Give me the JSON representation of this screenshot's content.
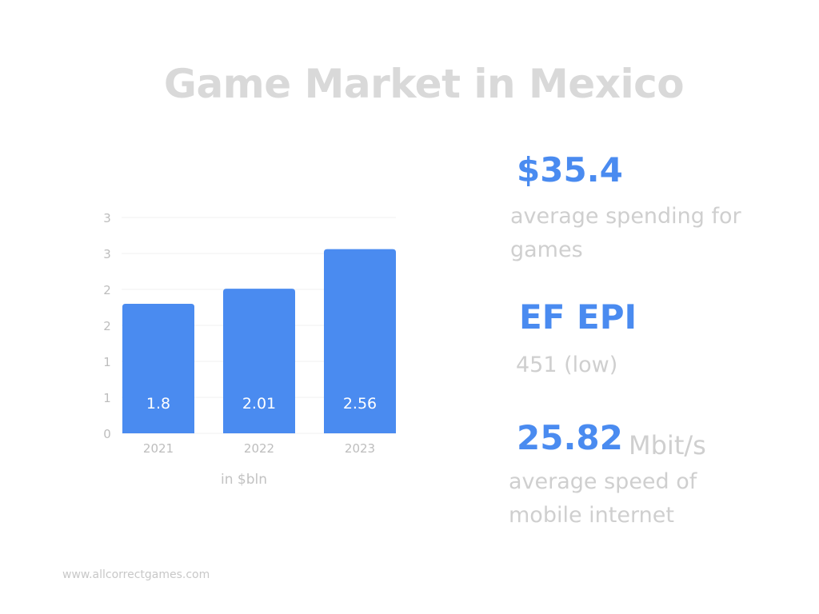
{
  "title": "Game Market in Mexico",
  "chart_caption": "in $bln",
  "stats": {
    "spending": {
      "value": "$35.4",
      "description": "average spending for games"
    },
    "epi": {
      "value": "EF EPI",
      "description": "451 (low)"
    },
    "internet": {
      "value": "25.82",
      "unit": "Mbit/s",
      "description": "average speed of mobile internet"
    }
  },
  "footer": "www.allcorrectgames.com",
  "colors": {
    "accent": "#4a8bf0",
    "muted_text": "#cfcfcf",
    "title": "#d9d9d9"
  },
  "chart_data": {
    "type": "bar",
    "categories": [
      "2021",
      "2022",
      "2023"
    ],
    "values": [
      1.8,
      2.01,
      2.56
    ],
    "data_labels": [
      "1.8",
      "2.01",
      "2.56"
    ],
    "y_tick_labels": [
      "0",
      "1",
      "1",
      "2",
      "2",
      "3",
      "3"
    ],
    "y_tick_values": [
      0,
      0.5,
      1,
      1.5,
      2,
      2.5,
      3
    ],
    "ylim": [
      0,
      3
    ],
    "xlabel": "in $bln",
    "grid": true
  }
}
